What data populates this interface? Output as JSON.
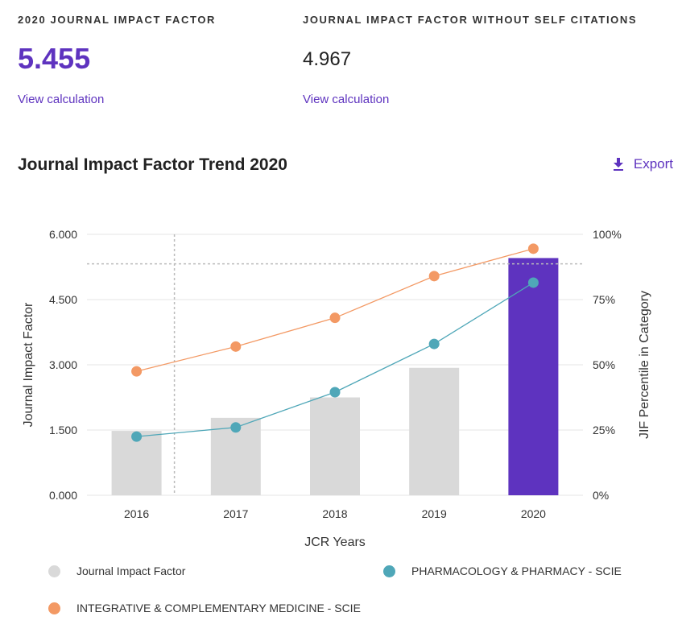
{
  "metrics": {
    "primary": {
      "label": "2020 JOURNAL IMPACT FACTOR",
      "value": "5.455",
      "link": "View calculation"
    },
    "secondary": {
      "label": "JOURNAL IMPACT FACTOR WITHOUT SELF CITATIONS",
      "value": "4.967",
      "link": "View calculation"
    }
  },
  "colors": {
    "accent": "#5e33bf",
    "bar": "#d9d9d9",
    "highlight_bar": "#5e33bf",
    "pharmacology": "#4fa7b8",
    "integrative": "#f39964",
    "grid": "#e6e6e6"
  },
  "export": {
    "label": "Export",
    "icon": "download-icon"
  },
  "chart_data": {
    "type": "bar",
    "title": "Journal Impact Factor Trend 2020",
    "xlabel": "JCR Years",
    "ylabel": "Journal Impact Factor",
    "y2label": "JIF Percentile in Category",
    "categories": [
      "2016",
      "2017",
      "2018",
      "2019",
      "2020"
    ],
    "ylim": [
      0,
      6
    ],
    "y2lim": [
      0,
      100
    ],
    "yticks": [
      "0.000",
      "1.500",
      "3.000",
      "4.500",
      "6.000"
    ],
    "y2ticks": [
      "0%",
      "25%",
      "50%",
      "75%",
      "100%"
    ],
    "highlight_category": "2020",
    "series": [
      {
        "name": "Journal Impact Factor",
        "kind": "bar",
        "axis": "left",
        "values": [
          1.48,
          1.78,
          2.25,
          2.93,
          5.455
        ]
      },
      {
        "name": "PHARMACOLOGY & PHARMACY - SCIE",
        "kind": "line",
        "axis": "right",
        "values": [
          22.5,
          26,
          39.5,
          58,
          81.5
        ]
      },
      {
        "name": "INTEGRATIVE & COMPLEMENTARY MEDICINE - SCIE",
        "kind": "line",
        "axis": "right",
        "values": [
          47.5,
          57,
          68,
          84,
          94.5
        ]
      }
    ],
    "legend": [
      {
        "label": "Journal Impact Factor",
        "color_key": "bar"
      },
      {
        "label": "PHARMACOLOGY & PHARMACY - SCIE",
        "color_key": "pharmacology"
      },
      {
        "label": "INTEGRATIVE & COMPLEMENTARY MEDICINE - SCIE",
        "color_key": "integrative"
      }
    ]
  }
}
